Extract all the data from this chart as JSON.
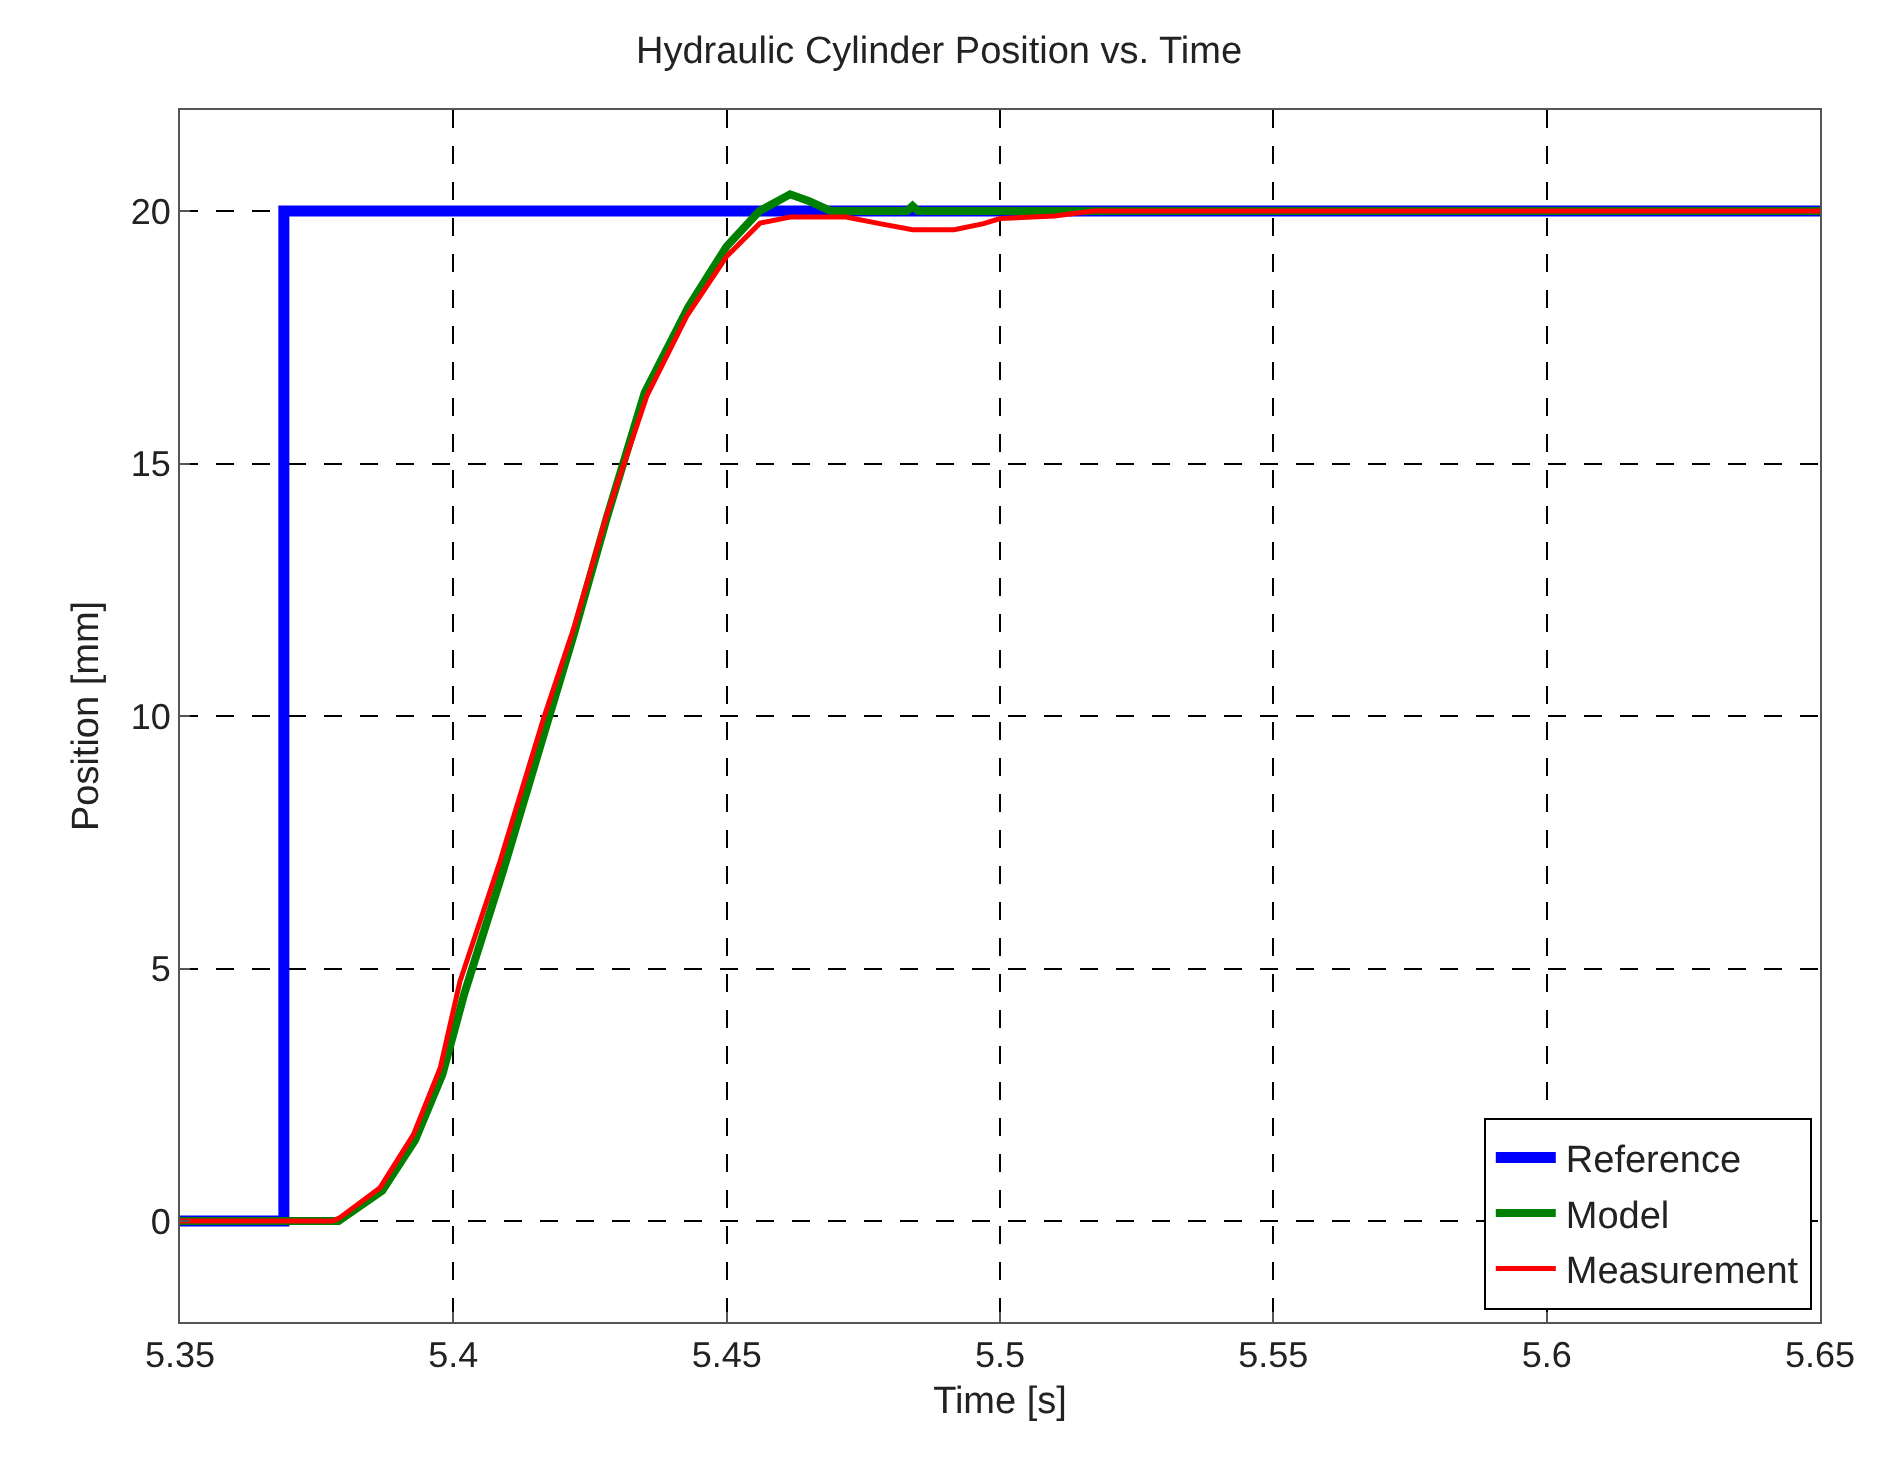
{
  "chart_data": {
    "type": "line",
    "title": "Hydraulic Cylinder Position vs. Time",
    "xlabel": "Time [s]",
    "ylabel": "Position [mm]",
    "xlim": [
      5.35,
      5.65
    ],
    "xticks": [
      5.35,
      5.4,
      5.45,
      5.5,
      5.55,
      5.6,
      5.65
    ],
    "ylim": [
      -2,
      22
    ],
    "yticks": [
      0,
      5,
      10,
      15,
      20
    ],
    "grid": true,
    "legend": "bottom right",
    "line_style": "solid",
    "marker": "none",
    "series": [
      {
        "name": "Reference",
        "color": "#0000ff",
        "x": [
          5.35,
          5.369,
          5.369,
          5.65
        ],
        "values": [
          0,
          0,
          20,
          20
        ]
      },
      {
        "name": "Model",
        "color": "#008000",
        "x": [
          5.35,
          5.379,
          5.387,
          5.393,
          5.398,
          5.402,
          5.409,
          5.417,
          5.422,
          5.428,
          5.435,
          5.443,
          5.45,
          5.456,
          5.4616,
          5.465,
          5.469,
          5.483,
          5.484,
          5.485,
          5.52,
          5.65
        ],
        "values": [
          0,
          0,
          0.6,
          1.6,
          2.9,
          4.5,
          6.9,
          9.8,
          11.6,
          13.9,
          16.4,
          18.1,
          19.3,
          20.0,
          20.33,
          20.2,
          20,
          20,
          20.1,
          20,
          20,
          20
        ]
      },
      {
        "name": "Measurement",
        "color": "#ff0000",
        "x": [
          5.35,
          5.378,
          5.3793,
          5.3866,
          5.3927,
          5.3976,
          5.4012,
          5.4085,
          5.4165,
          5.422,
          5.428,
          5.4354,
          5.4427,
          5.45,
          5.4561,
          5.4616,
          5.4718,
          5.478,
          5.484,
          5.4916,
          5.497,
          5.5,
          5.51,
          5.517,
          5.65
        ],
        "values": [
          0,
          0,
          0.07,
          0.66,
          1.71,
          3.03,
          4.74,
          7.11,
          9.95,
          11.73,
          13.96,
          16.34,
          17.92,
          19.1,
          19.76,
          19.88,
          19.88,
          19.75,
          19.63,
          19.63,
          19.75,
          19.85,
          19.9,
          20,
          20
        ]
      }
    ]
  }
}
